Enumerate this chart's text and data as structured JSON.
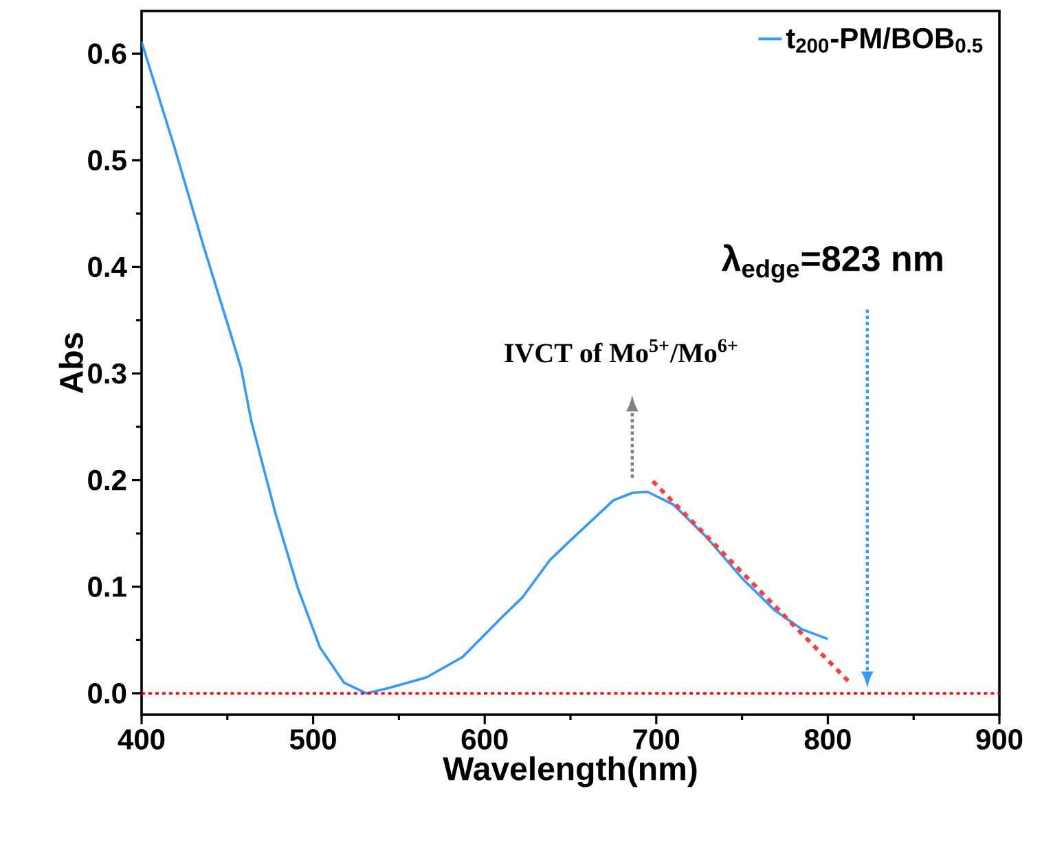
{
  "chart_data": {
    "type": "line",
    "xlabel": "Wavelength(nm)",
    "ylabel": "Abs",
    "xlim": [
      400,
      900
    ],
    "ylim": [
      -0.02,
      0.64
    ],
    "xticks": [
      400,
      500,
      600,
      700,
      800,
      900
    ],
    "yticks": [
      {
        "value": 0,
        "label": "0.0"
      },
      0.1,
      0.2,
      0.3,
      0.4,
      0.5,
      0.6
    ],
    "series": [
      {
        "name": "t$_{200}$-PM/BOB$_{0.5}$",
        "color": "#3399ff",
        "line_style": "solid",
        "x": [
          400,
          419,
          436,
          451,
          458,
          464,
          478,
          491,
          504,
          518,
          531,
          544,
          566,
          587,
          611,
          622,
          638,
          649,
          675,
          686,
          695,
          710,
          729,
          750,
          769,
          785,
          800
        ],
        "values": [
          0.611,
          0.513,
          0.42,
          0.342,
          0.305,
          0.255,
          0.169,
          0.099,
          0.043,
          0.01,
          0.0,
          0.005,
          0.015,
          0.034,
          0.073,
          0.09,
          0.125,
          0.142,
          0.181,
          0.188,
          0.189,
          0.177,
          0.147,
          0.108,
          0.078,
          0.06,
          0.051
        ]
      },
      {
        "type": "line",
        "color": "#ff4040",
        "line_style": "dotted",
        "x": [
          698,
          814
        ],
        "values": [
          0.199,
          0.008
        ]
      }
    ],
    "ref_lines": [
      {
        "axis": "y",
        "value": 0,
        "color": "#ff0000",
        "line_style": "dotted"
      }
    ],
    "annotations": [
      "IVCT of Mo$^{5+}$/Mo$^{6+}$",
      "λ$_{edge}$=823 nm"
    ],
    "legend": "top right",
    "marker": "none",
    "grid": false
  }
}
